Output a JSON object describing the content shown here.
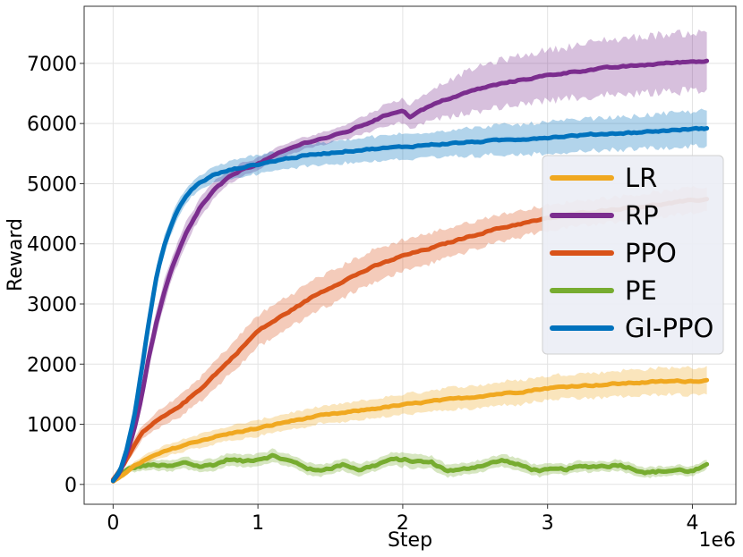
{
  "chart_data": {
    "type": "line",
    "title": "",
    "xlabel": "Step",
    "ylabel": "Reward",
    "x_multiplier_label": "1e6",
    "xlim": [
      -0.2,
      4.3
    ],
    "ylim": [
      -330,
      7950
    ],
    "xticks": [
      0,
      1,
      2,
      3,
      4
    ],
    "xtick_labels": [
      "0",
      "1",
      "2",
      "3",
      "4"
    ],
    "yticks": [
      0,
      1000,
      2000,
      3000,
      4000,
      5000,
      6000,
      7000
    ],
    "ytick_labels": [
      "0",
      "1000",
      "2000",
      "3000",
      "4000",
      "5000",
      "6000",
      "7000"
    ],
    "grid": true,
    "legend_position": "center-right",
    "series": [
      {
        "name": "LR",
        "color": "#f0a820",
        "x": [
          0,
          0.1,
          0.2,
          0.3,
          0.4,
          0.5,
          0.6,
          0.7,
          0.8,
          0.9,
          1.0,
          1.2,
          1.4,
          1.6,
          1.8,
          2.0,
          2.2,
          2.4,
          2.6,
          2.8,
          3.0,
          3.2,
          3.4,
          3.6,
          3.8,
          4.0,
          4.1
        ],
        "values": [
          50,
          230,
          380,
          490,
          580,
          660,
          730,
          790,
          840,
          890,
          930,
          1040,
          1130,
          1190,
          1260,
          1320,
          1380,
          1430,
          1490,
          1540,
          1600,
          1640,
          1660,
          1690,
          1710,
          1720,
          1730
        ],
        "band": [
          30,
          60,
          80,
          90,
          100,
          110,
          110,
          120,
          120,
          130,
          130,
          140,
          140,
          150,
          160,
          170,
          180,
          190,
          190,
          200,
          200,
          210,
          210,
          220,
          220,
          230,
          230
        ]
      },
      {
        "name": "RP",
        "color": "#7b2d8e",
        "x": [
          0,
          0.05,
          0.1,
          0.15,
          0.2,
          0.25,
          0.3,
          0.35,
          0.4,
          0.5,
          0.6,
          0.7,
          0.8,
          0.9,
          1.0,
          1.1,
          1.2,
          1.3,
          1.4,
          1.5,
          1.6,
          1.7,
          1.8,
          1.9,
          2.0,
          2.05,
          2.1,
          2.2,
          2.3,
          2.4,
          2.5,
          2.6,
          2.8,
          3.0,
          3.2,
          3.4,
          3.6,
          3.8,
          4.0,
          4.1
        ],
        "values": [
          60,
          220,
          550,
          950,
          1500,
          2150,
          2700,
          3150,
          3550,
          4150,
          4600,
          4900,
          5100,
          5250,
          5330,
          5450,
          5560,
          5660,
          5730,
          5780,
          5850,
          5950,
          6050,
          6150,
          6230,
          6100,
          6200,
          6300,
          6400,
          6480,
          6560,
          6620,
          6720,
          6800,
          6870,
          6920,
          6960,
          7000,
          7030,
          7040
        ],
        "band": [
          30,
          60,
          100,
          140,
          180,
          200,
          210,
          210,
          200,
          180,
          160,
          140,
          120,
          110,
          100,
          100,
          100,
          100,
          100,
          110,
          120,
          140,
          160,
          180,
          200,
          200,
          220,
          260,
          300,
          330,
          360,
          380,
          400,
          420,
          440,
          460,
          470,
          480,
          480,
          480
        ]
      },
      {
        "name": "PPO",
        "color": "#d95319",
        "x": [
          0,
          0.1,
          0.2,
          0.3,
          0.4,
          0.5,
          0.6,
          0.7,
          0.8,
          0.9,
          1.0,
          1.2,
          1.4,
          1.6,
          1.8,
          2.0,
          2.2,
          2.4,
          2.6,
          2.8,
          3.0,
          3.2,
          3.4,
          3.6,
          3.8,
          4.0,
          4.1
        ],
        "values": [
          80,
          450,
          850,
          1050,
          1200,
          1380,
          1580,
          1820,
          2050,
          2300,
          2550,
          2850,
          3150,
          3400,
          3620,
          3800,
          3930,
          4080,
          4220,
          4330,
          4420,
          4500,
          4560,
          4610,
          4660,
          4720,
          4740
        ],
        "band": [
          40,
          80,
          120,
          140,
          160,
          180,
          200,
          220,
          240,
          250,
          260,
          270,
          270,
          270,
          270,
          260,
          250,
          240,
          230,
          220,
          210,
          210,
          210,
          210,
          210,
          210,
          210
        ]
      },
      {
        "name": "PE",
        "color": "#77ac30",
        "x": [
          0,
          0.1,
          0.2,
          0.3,
          0.4,
          0.5,
          0.6,
          0.7,
          0.8,
          0.9,
          1.0,
          1.1,
          1.2,
          1.3,
          1.4,
          1.5,
          1.6,
          1.7,
          1.8,
          1.9,
          2.0,
          2.1,
          2.2,
          2.3,
          2.4,
          2.5,
          2.6,
          2.7,
          2.8,
          2.9,
          3.0,
          3.1,
          3.2,
          3.3,
          3.4,
          3.5,
          3.6,
          3.7,
          3.8,
          3.9,
          4.0,
          4.1
        ],
        "values": [
          60,
          240,
          310,
          320,
          290,
          360,
          300,
          330,
          420,
          380,
          430,
          480,
          400,
          320,
          220,
          280,
          330,
          250,
          310,
          400,
          410,
          380,
          360,
          240,
          230,
          300,
          350,
          400,
          320,
          250,
          230,
          240,
          280,
          300,
          310,
          330,
          260,
          200,
          220,
          240,
          220,
          300
        ],
        "band": [
          30,
          60,
          80,
          90,
          90,
          100,
          100,
          100,
          100,
          100,
          100,
          100,
          100,
          100,
          100,
          100,
          100,
          100,
          100,
          100,
          120,
          110,
          100,
          100,
          100,
          100,
          100,
          100,
          100,
          100,
          90,
          90,
          90,
          90,
          90,
          90,
          90,
          90,
          80,
          80,
          80,
          80
        ]
      },
      {
        "name": "GI-PPO",
        "color": "#0072bd",
        "x": [
          0,
          0.05,
          0.1,
          0.15,
          0.2,
          0.25,
          0.3,
          0.35,
          0.4,
          0.45,
          0.5,
          0.55,
          0.6,
          0.7,
          0.8,
          0.9,
          1.0,
          1.2,
          1.4,
          1.6,
          1.8,
          2.0,
          2.2,
          2.4,
          2.6,
          2.8,
          3.0,
          3.2,
          3.4,
          3.6,
          3.8,
          4.0,
          4.1
        ],
        "values": [
          60,
          250,
          650,
          1200,
          1950,
          2750,
          3450,
          3950,
          4300,
          4580,
          4780,
          4920,
          5020,
          5150,
          5220,
          5280,
          5320,
          5420,
          5490,
          5540,
          5580,
          5610,
          5650,
          5680,
          5710,
          5740,
          5770,
          5800,
          5830,
          5850,
          5880,
          5910,
          5920
        ],
        "band": [
          30,
          60,
          100,
          140,
          170,
          180,
          170,
          150,
          140,
          130,
          120,
          120,
          120,
          130,
          140,
          150,
          160,
          170,
          180,
          190,
          200,
          210,
          220,
          230,
          240,
          250,
          260,
          260,
          270,
          270,
          280,
          290,
          290
        ]
      }
    ]
  }
}
